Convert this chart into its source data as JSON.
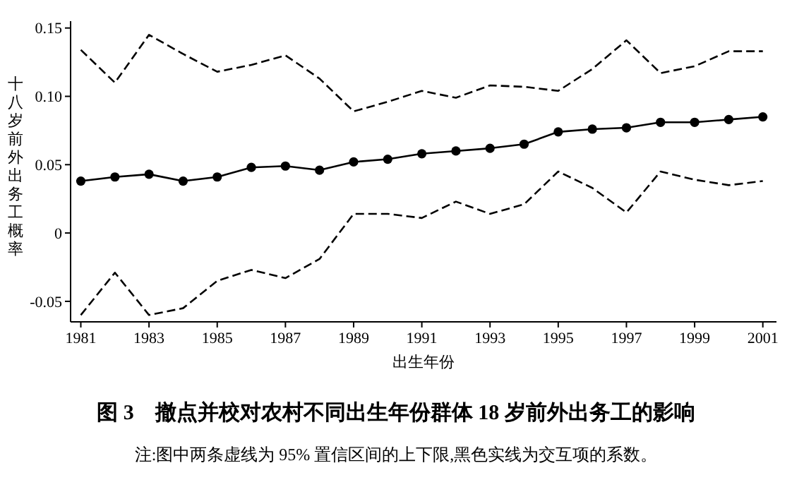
{
  "chart_data": {
    "type": "line",
    "title": "图 3　撤点并校对农村不同出生年份群体 18 岁前外出务工的影响",
    "xlabel": "出生年份",
    "ylabel": "十八岁前外出务工概率",
    "annotations": [
      "注:图中两条虚线为 95% 置信区间的上下限,黑色实线为交互项的系数。"
    ],
    "x": [
      1981,
      1982,
      1983,
      1984,
      1985,
      1986,
      1987,
      1988,
      1989,
      1990,
      1991,
      1992,
      1993,
      1994,
      1995,
      1996,
      1997,
      1998,
      1999,
      2000,
      2001
    ],
    "series": [
      {
        "color": "#000000",
        "marker": "circle",
        "line_style": "solid",
        "values": [
          0.038,
          0.041,
          0.043,
          0.038,
          0.041,
          0.048,
          0.049,
          0.046,
          0.052,
          0.054,
          0.058,
          0.06,
          0.062,
          0.065,
          0.074,
          0.076,
          0.077,
          0.081,
          0.081,
          0.083,
          0.085
        ]
      },
      {
        "color": "#000000",
        "marker": "none",
        "line_style": "dashed",
        "values": [
          0.134,
          0.11,
          0.145,
          0.131,
          0.118,
          0.123,
          0.13,
          0.113,
          0.089,
          0.096,
          0.104,
          0.099,
          0.108,
          0.107,
          0.104,
          0.12,
          0.141,
          0.117,
          0.122,
          0.133,
          0.133
        ]
      },
      {
        "color": "#000000",
        "marker": "none",
        "line_style": "dashed",
        "values": [
          -0.06,
          -0.029,
          -0.06,
          -0.055,
          -0.035,
          -0.027,
          -0.033,
          -0.019,
          0.014,
          0.014,
          0.011,
          0.023,
          0.014,
          0.021,
          0.045,
          0.033,
          0.015,
          0.045,
          0.039,
          0.035,
          0.038
        ]
      }
    ],
    "xlim": [
      1980.7,
      2001.4
    ],
    "ylim": [
      -0.065,
      0.155
    ],
    "xticks": [
      1981,
      1983,
      1985,
      1987,
      1989,
      1991,
      1993,
      1995,
      1997,
      1999,
      2001
    ],
    "yticks": [
      {
        "value": -0.05,
        "label": "-0.05"
      },
      0,
      {
        "value": 0.05,
        "label": "0.05"
      },
      {
        "value": 0.1,
        "label": "0.10"
      },
      {
        "value": 0.15,
        "label": "0.15"
      }
    ],
    "grid": false
  }
}
